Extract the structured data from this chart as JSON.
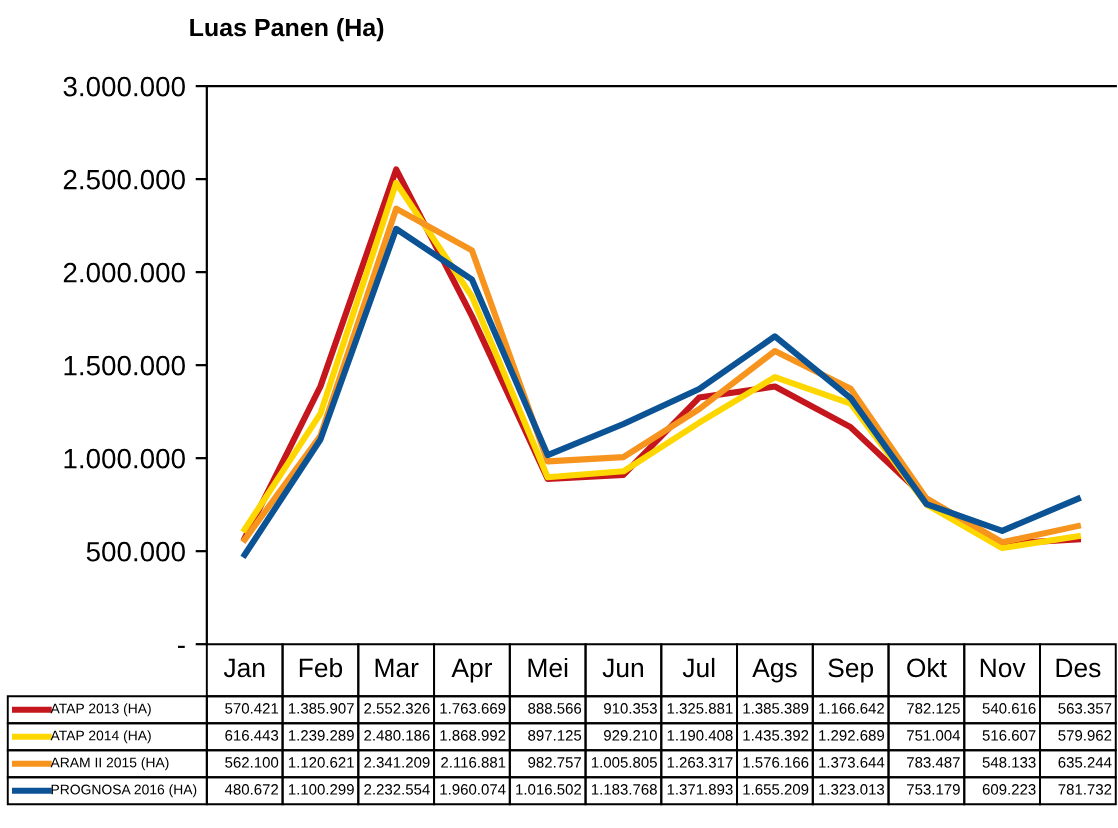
{
  "chart_data": {
    "type": "line",
    "title": "Luas Panen (Ha)",
    "categories": [
      "Jan",
      "Feb",
      "Mar",
      "Apr",
      "Mei",
      "Jun",
      "Jul",
      "Ags",
      "Sep",
      "Okt",
      "Nov",
      "Des"
    ],
    "ylim": [
      0,
      3000000
    ],
    "yticks": [
      {
        "value": 0,
        "label": "-"
      },
      {
        "value": 500000,
        "label": "500.000"
      },
      {
        "value": 1000000,
        "label": "1.000.000"
      },
      {
        "value": 1500000,
        "label": "1.500.000"
      },
      {
        "value": 2000000,
        "label": "2.000.000"
      },
      {
        "value": 2500000,
        "label": "2.500.000"
      },
      {
        "value": 3000000,
        "label": "3.000.000"
      }
    ],
    "grid": false,
    "legend": "bottom",
    "marker": "none",
    "line_style": "solid",
    "series": [
      {
        "name": "ATAP 2013 (HA)",
        "color": "#c4161c",
        "values": [
          570421,
          1385907,
          2552326,
          1763669,
          888566,
          910353,
          1325881,
          1385389,
          1166642,
          782125,
          540616,
          563357
        ],
        "value_labels": [
          "570.421",
          "1.385.907",
          "2.552.326",
          "1.763.669",
          "888.566",
          "910.353",
          "1.325.881",
          "1.385.389",
          "1.166.642",
          "782.125",
          "540.616",
          "563.357"
        ]
      },
      {
        "name": "ATAP 2014 (HA)",
        "color": "#ffd700",
        "values": [
          616443,
          1239289,
          2480186,
          1868992,
          897125,
          929210,
          1190408,
          1435392,
          1292689,
          751004,
          516607,
          579962
        ],
        "value_labels": [
          "616.443",
          "1.239.289",
          "2.480.186",
          "1.868.992",
          "897.125",
          "929.210",
          "1.190.408",
          "1.435.392",
          "1.292.689",
          "751.004",
          "516.607",
          "579.962"
        ]
      },
      {
        "name": "ARAM II 2015 (HA)",
        "color": "#f7941d",
        "values": [
          562100,
          1120621,
          2341209,
          2116881,
          982757,
          1005805,
          1263317,
          1576166,
          1373644,
          783487,
          548133,
          635244
        ],
        "value_labels": [
          "562.100",
          "1.120.621",
          "2.341.209",
          "2.116.881",
          "982.757",
          "1.005.805",
          "1.263.317",
          "1.576.166",
          "1.373.644",
          "783.487",
          "548.133",
          "635.244"
        ]
      },
      {
        "name": "PROGNOSA 2016 (HA)",
        "color": "#0b5394",
        "values": [
          480672,
          1100299,
          2232554,
          1960074,
          1016502,
          1183768,
          1371893,
          1655209,
          1323013,
          753179,
          609223,
          781732
        ],
        "value_labels": [
          "480.672",
          "1.100.299",
          "2.232.554",
          "1.960.074",
          "1.016.502",
          "1.183.768",
          "1.371.893",
          "1.655.209",
          "1.323.013",
          "753.179",
          "609.223",
          "781.732"
        ]
      }
    ]
  }
}
